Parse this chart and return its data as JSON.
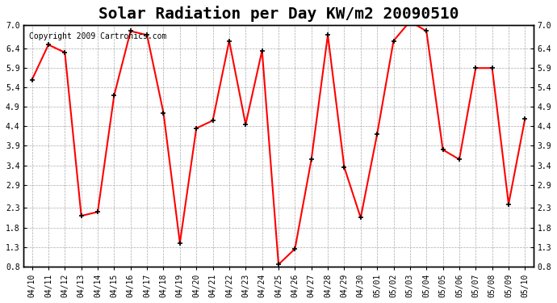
{
  "title": "Solar Radiation per Day KW/m2 20090510",
  "copyright": "Copyright 2009 Cartronics.com",
  "dates": [
    "04/10",
    "04/11",
    "04/12",
    "04/13",
    "04/14",
    "04/15",
    "04/16",
    "04/17",
    "04/18",
    "04/19",
    "04/20",
    "04/21",
    "04/22",
    "04/23",
    "04/24",
    "04/25",
    "04/26",
    "04/27",
    "04/28",
    "04/29",
    "04/30",
    "05/01",
    "05/02",
    "05/03",
    "05/04",
    "05/05",
    "05/06",
    "05/07",
    "05/08",
    "05/09",
    "05/10"
  ],
  "values": [
    5.6,
    6.5,
    6.3,
    2.1,
    2.2,
    5.2,
    6.85,
    6.75,
    4.75,
    1.4,
    4.35,
    4.55,
    6.6,
    4.45,
    6.35,
    0.85,
    1.25,
    3.55,
    6.75,
    3.35,
    2.05,
    4.2,
    6.6,
    7.1,
    6.85,
    3.8,
    3.55,
    5.9,
    5.9,
    2.4,
    4.6
  ],
  "line_color": "#ff0000",
  "marker_color": "#000000",
  "bg_color": "#ffffff",
  "grid_color": "#aaaaaa",
  "ylim_min": 0.8,
  "ylim_max": 7.0,
  "yticks": [
    0.8,
    1.3,
    1.8,
    2.3,
    2.9,
    3.4,
    3.9,
    4.4,
    4.9,
    5.4,
    5.9,
    6.4,
    7.0
  ],
  "title_fontsize": 14,
  "copyright_fontsize": 7,
  "tick_fontsize": 7
}
